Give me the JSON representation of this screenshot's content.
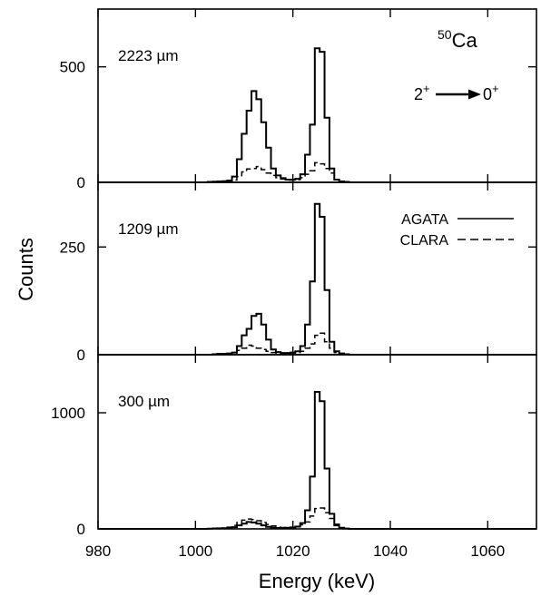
{
  "chart_data": {
    "type": "line",
    "style": "step histogram",
    "xlabel": "Energy (keV)",
    "ylabel": "Counts",
    "xlim": [
      980,
      1070
    ],
    "x_ticks": [
      980,
      1000,
      1020,
      1040,
      1060
    ],
    "bin_width_keV": 1,
    "annotation": {
      "mass": "50",
      "element": "Ca",
      "initial": "2",
      "initial_sup": "+",
      "final": "0",
      "final_sup": "+"
    },
    "legend": {
      "placement": "middle-panel top-right",
      "entries": [
        {
          "label": "AGATA",
          "style": "solid"
        },
        {
          "label": "CLARA",
          "style": "dashed"
        }
      ]
    },
    "panels": [
      {
        "label": "2223 µm",
        "ylim": [
          0,
          750
        ],
        "y_ticks": [
          0,
          500
        ],
        "series": [
          {
            "name": "AGATA",
            "points": [
              [
                1003,
                2
              ],
              [
                1004,
                3
              ],
              [
                1005,
                4
              ],
              [
                1006,
                5
              ],
              [
                1007,
                8
              ],
              [
                1008,
                25
              ],
              [
                1009,
                100
              ],
              [
                1010,
                210
              ],
              [
                1011,
                310
              ],
              [
                1012,
                395
              ],
              [
                1013,
                360
              ],
              [
                1014,
                260
              ],
              [
                1015,
                150
              ],
              [
                1016,
                60
              ],
              [
                1017,
                30
              ],
              [
                1018,
                18
              ],
              [
                1019,
                12
              ],
              [
                1020,
                12
              ],
              [
                1021,
                15
              ],
              [
                1022,
                35
              ],
              [
                1023,
                120
              ],
              [
                1024,
                250
              ],
              [
                1025,
                580
              ],
              [
                1026,
                565
              ],
              [
                1027,
                280
              ],
              [
                1028,
                60
              ],
              [
                1029,
                12
              ],
              [
                1030,
                4
              ],
              [
                1031,
                2
              ]
            ]
          },
          {
            "name": "CLARA",
            "points": [
              [
                1003,
                1
              ],
              [
                1004,
                2
              ],
              [
                1005,
                3
              ],
              [
                1006,
                4
              ],
              [
                1007,
                6
              ],
              [
                1008,
                10
              ],
              [
                1009,
                25
              ],
              [
                1010,
                45
              ],
              [
                1011,
                58
              ],
              [
                1012,
                60
              ],
              [
                1013,
                68
              ],
              [
                1014,
                55
              ],
              [
                1015,
                40
              ],
              [
                1016,
                30
              ],
              [
                1017,
                20
              ],
              [
                1018,
                14
              ],
              [
                1019,
                10
              ],
              [
                1020,
                10
              ],
              [
                1021,
                12
              ],
              [
                1022,
                20
              ],
              [
                1023,
                35
              ],
              [
                1024,
                50
              ],
              [
                1025,
                85
              ],
              [
                1026,
                80
              ],
              [
                1027,
                60
              ],
              [
                1028,
                40
              ],
              [
                1029,
                12
              ],
              [
                1030,
                4
              ],
              [
                1031,
                2
              ]
            ]
          }
        ]
      },
      {
        "label": "1209 µm",
        "ylim": [
          0,
          400
        ],
        "y_ticks": [
          0,
          250
        ],
        "series": [
          {
            "name": "AGATA",
            "points": [
              [
                1004,
                1
              ],
              [
                1005,
                2
              ],
              [
                1006,
                2
              ],
              [
                1007,
                3
              ],
              [
                1008,
                5
              ],
              [
                1009,
                20
              ],
              [
                1010,
                45
              ],
              [
                1011,
                60
              ],
              [
                1012,
                90
              ],
              [
                1013,
                95
              ],
              [
                1014,
                70
              ],
              [
                1015,
                35
              ],
              [
                1016,
                12
              ],
              [
                1017,
                6
              ],
              [
                1018,
                4
              ],
              [
                1019,
                4
              ],
              [
                1020,
                5
              ],
              [
                1021,
                8
              ],
              [
                1022,
                20
              ],
              [
                1023,
                70
              ],
              [
                1024,
                170
              ],
              [
                1025,
                350
              ],
              [
                1026,
                320
              ],
              [
                1027,
                150
              ],
              [
                1028,
                30
              ],
              [
                1029,
                8
              ],
              [
                1030,
                3
              ],
              [
                1031,
                1
              ]
            ]
          },
          {
            "name": "CLARA",
            "points": [
              [
                1004,
                1
              ],
              [
                1005,
                1
              ],
              [
                1006,
                2
              ],
              [
                1007,
                2
              ],
              [
                1008,
                4
              ],
              [
                1009,
                10
              ],
              [
                1010,
                15
              ],
              [
                1011,
                22
              ],
              [
                1012,
                20
              ],
              [
                1013,
                15
              ],
              [
                1014,
                12
              ],
              [
                1015,
                8
              ],
              [
                1016,
                5
              ],
              [
                1017,
                4
              ],
              [
                1018,
                3
              ],
              [
                1019,
                3
              ],
              [
                1020,
                4
              ],
              [
                1021,
                5
              ],
              [
                1022,
                8
              ],
              [
                1023,
                15
              ],
              [
                1024,
                25
              ],
              [
                1025,
                45
              ],
              [
                1026,
                50
              ],
              [
                1027,
                30
              ],
              [
                1028,
                15
              ],
              [
                1029,
                5
              ],
              [
                1030,
                2
              ],
              [
                1031,
                1
              ]
            ]
          }
        ]
      },
      {
        "label": "300 µm",
        "ylim": [
          0,
          1500
        ],
        "y_ticks": [
          0,
          1000
        ],
        "series": [
          {
            "name": "AGATA",
            "points": [
              [
                1003,
                2
              ],
              [
                1004,
                4
              ],
              [
                1005,
                5
              ],
              [
                1006,
                6
              ],
              [
                1007,
                8
              ],
              [
                1008,
                15
              ],
              [
                1009,
                30
              ],
              [
                1010,
                45
              ],
              [
                1011,
                60
              ],
              [
                1012,
                55
              ],
              [
                1013,
                45
              ],
              [
                1014,
                30
              ],
              [
                1015,
                18
              ],
              [
                1016,
                10
              ],
              [
                1017,
                8
              ],
              [
                1018,
                8
              ],
              [
                1019,
                10
              ],
              [
                1020,
                12
              ],
              [
                1021,
                20
              ],
              [
                1022,
                50
              ],
              [
                1023,
                160
              ],
              [
                1024,
                450
              ],
              [
                1025,
                1180
              ],
              [
                1026,
                1100
              ],
              [
                1027,
                520
              ],
              [
                1028,
                130
              ],
              [
                1029,
                30
              ],
              [
                1030,
                8
              ],
              [
                1031,
                3
              ]
            ]
          },
          {
            "name": "CLARA",
            "points": [
              [
                1003,
                2
              ],
              [
                1004,
                3
              ],
              [
                1005,
                5
              ],
              [
                1006,
                8
              ],
              [
                1007,
                15
              ],
              [
                1008,
                30
              ],
              [
                1009,
                55
              ],
              [
                1010,
                75
              ],
              [
                1011,
                85
              ],
              [
                1012,
                80
              ],
              [
                1013,
                70
              ],
              [
                1014,
                55
              ],
              [
                1015,
                38
              ],
              [
                1016,
                25
              ],
              [
                1017,
                15
              ],
              [
                1018,
                12
              ],
              [
                1019,
                12
              ],
              [
                1020,
                15
              ],
              [
                1021,
                22
              ],
              [
                1022,
                35
              ],
              [
                1023,
                60
              ],
              [
                1024,
                110
              ],
              [
                1025,
                175
              ],
              [
                1026,
                180
              ],
              [
                1027,
                140
              ],
              [
                1028,
                90
              ],
              [
                1029,
                40
              ],
              [
                1030,
                12
              ],
              [
                1031,
                4
              ]
            ]
          }
        ]
      }
    ]
  }
}
